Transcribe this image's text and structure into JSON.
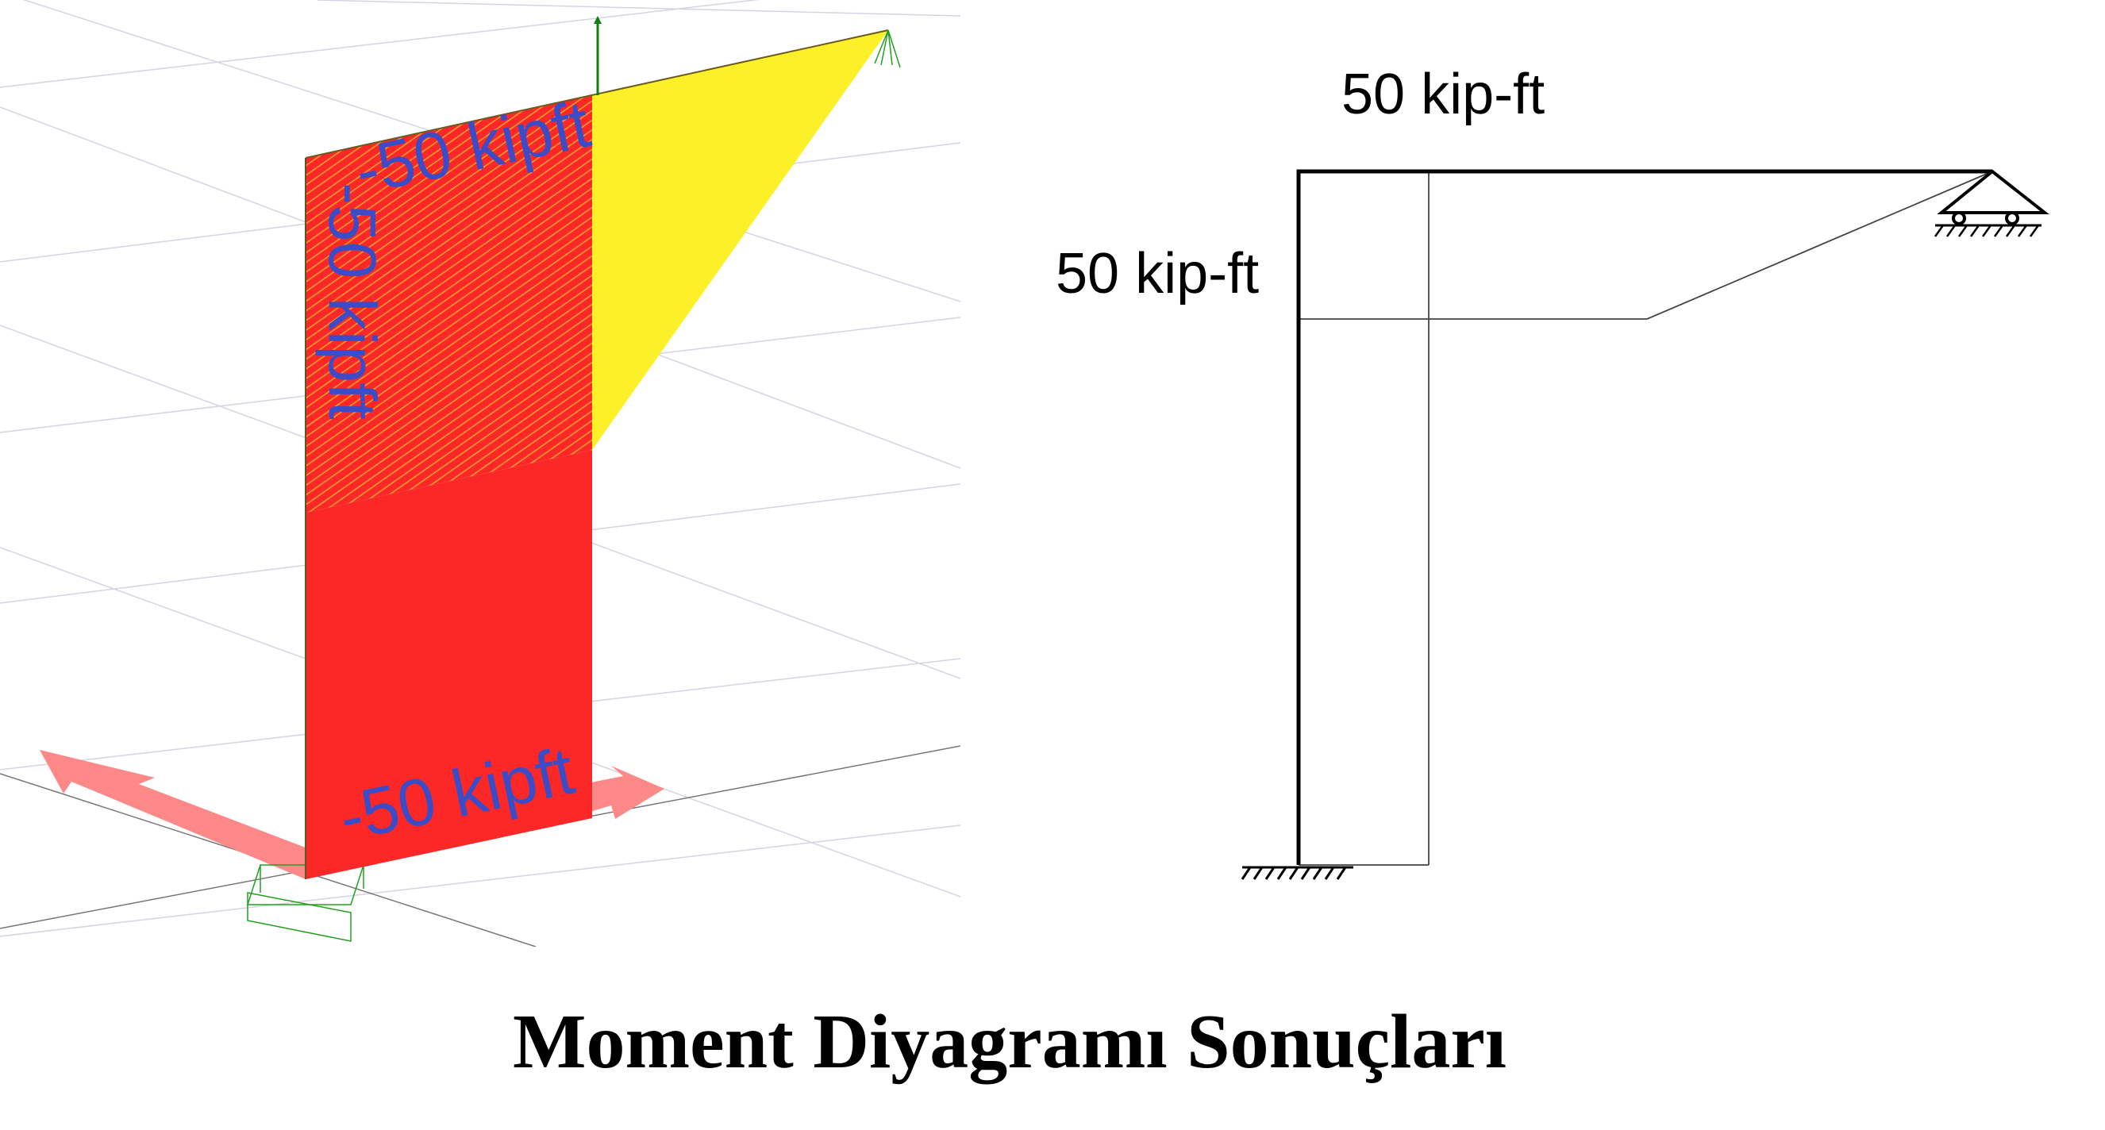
{
  "model_view_3d": {
    "moment_labels": {
      "top": "-50 kipft",
      "column_vertical": "-50 kipft",
      "bottom": "-50 kipft"
    },
    "colors": {
      "negative_moment_fill": "#fc2828",
      "positive_moment_fill": "#fcf028",
      "label": "#3b4cc6",
      "axis_arrows": "#fc8888",
      "support": "#22a022"
    }
  },
  "frame_diagram_2d": {
    "beam_moment_label": "50 kip-ft",
    "column_moment_label": "50 kip-ft",
    "supports": [
      "fixed-support-icon",
      "roller-support-icon"
    ]
  },
  "caption": "Moment Diyagramı Sonuçları"
}
